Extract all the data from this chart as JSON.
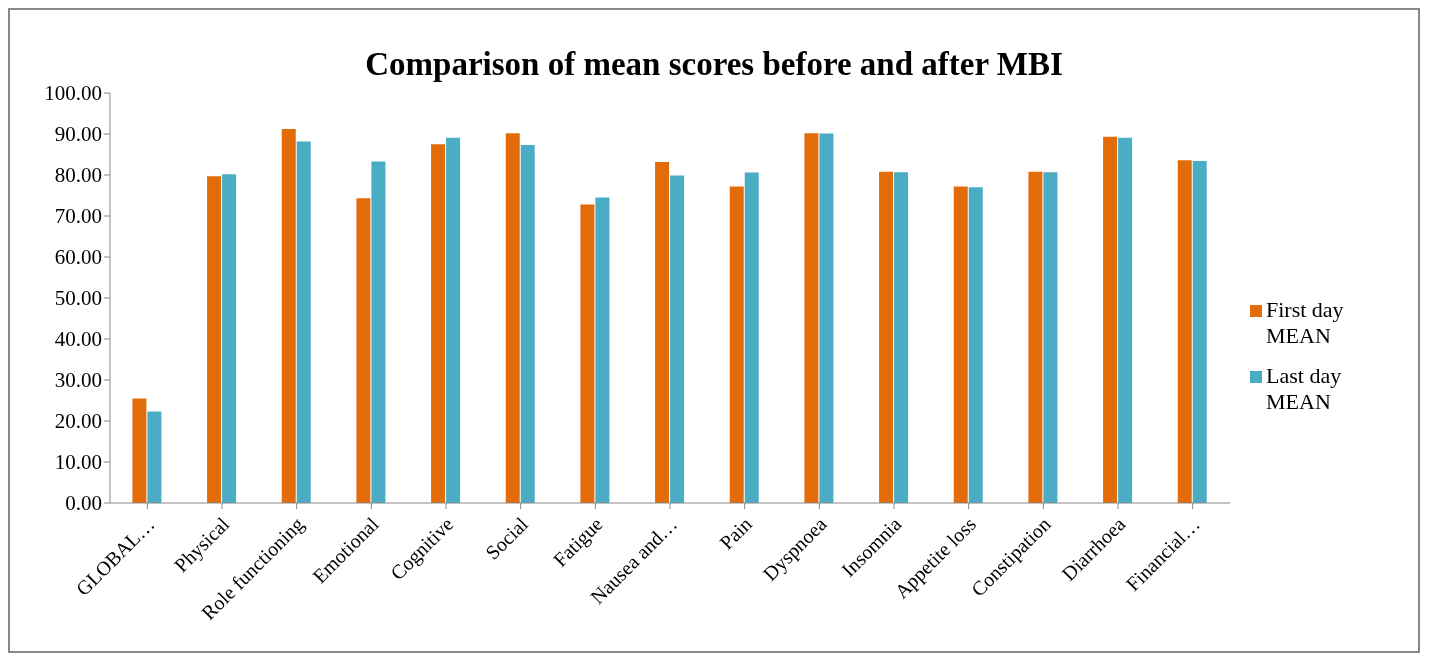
{
  "chart_data": {
    "type": "bar",
    "title": "Comparison of mean scores before and after MBI",
    "categories": [
      "GLOBAL…",
      "Physical",
      "Role functioning",
      "Emotional",
      "Cognitive",
      "Social",
      "Fatigue",
      "Nausea and…",
      "Pain",
      "Dyspnoea",
      "Insomnia",
      "Appetite loss",
      "Constipation",
      "Diarrhoea",
      "Financial…"
    ],
    "series": [
      {
        "name": "First day MEAN",
        "color": "#e36c0a",
        "values": [
          25.5,
          79.7,
          91.2,
          74.3,
          87.5,
          90.2,
          72.8,
          83.2,
          77.2,
          90.2,
          80.8,
          77.2,
          80.8,
          89.3,
          83.6
        ]
      },
      {
        "name": "Last day MEAN",
        "color": "#4bacc6",
        "values": [
          22.3,
          80.2,
          88.2,
          83.3,
          89.1,
          87.3,
          74.5,
          79.9,
          80.6,
          90.1,
          80.7,
          77.0,
          80.7,
          89.1,
          83.4
        ]
      }
    ],
    "ylim": [
      0,
      100
    ],
    "yticks": [
      {
        "value": 0,
        "label": "0.00"
      },
      {
        "value": 10,
        "label": "10.00"
      },
      {
        "value": 20,
        "label": "20.00"
      },
      {
        "value": 30,
        "label": "30.00"
      },
      {
        "value": 40,
        "label": "40.00"
      },
      {
        "value": 50,
        "label": "50.00"
      },
      {
        "value": 60,
        "label": "60.00"
      },
      {
        "value": 70,
        "label": "70.00"
      },
      {
        "value": 80,
        "label": "80.00"
      },
      {
        "value": 90,
        "label": "90.00"
      },
      {
        "value": 100,
        "label": "100.00"
      }
    ],
    "grid": false,
    "legend": "right"
  }
}
